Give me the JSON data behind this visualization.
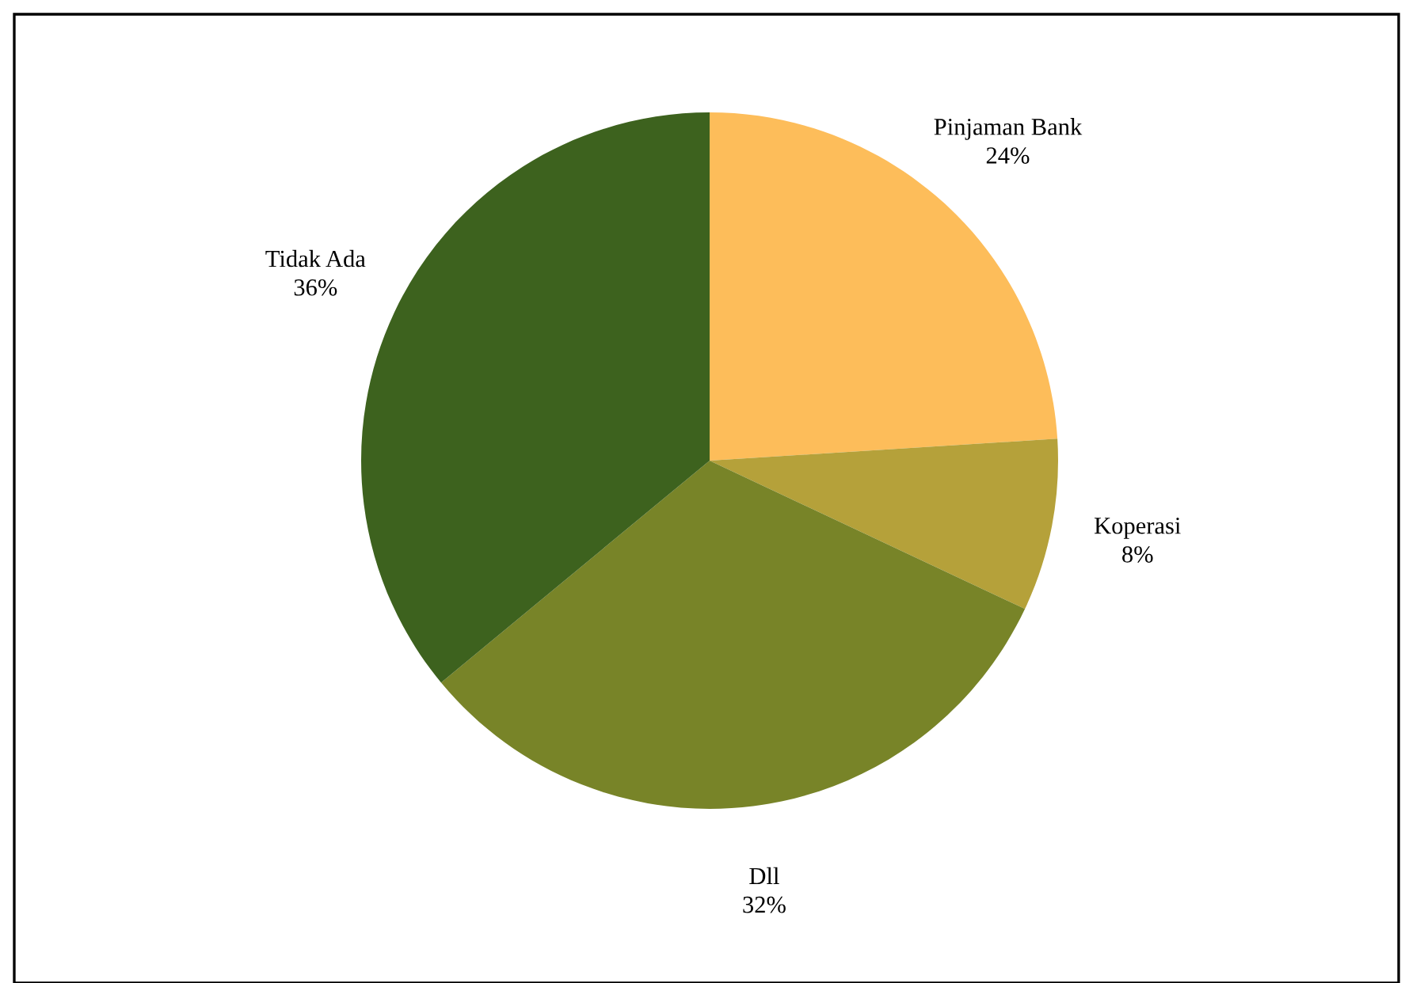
{
  "chart_data": {
    "type": "pie",
    "categories": [
      "Pinjaman Bank",
      "Koperasi",
      "Dll",
      "Tidak Ada"
    ],
    "values": [
      24,
      8,
      32,
      36
    ],
    "colors": [
      "#fdbd5a",
      "#b5a13a",
      "#788428",
      "#3d621e"
    ],
    "value_labels": [
      "24%",
      "8%",
      "32%",
      "36%"
    ]
  }
}
